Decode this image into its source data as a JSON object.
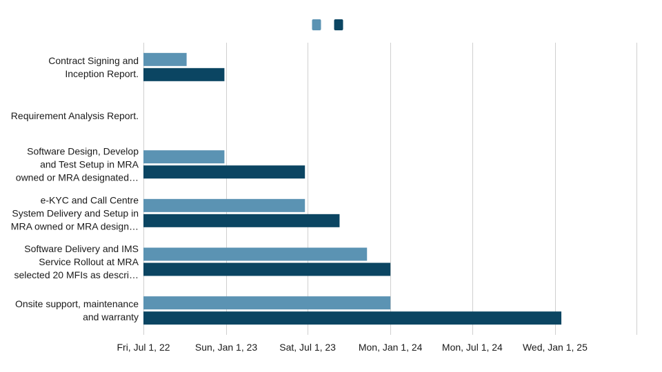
{
  "chart_data": {
    "type": "bar",
    "orientation": "horizontal",
    "categories": [
      [
        "Contract Signing and",
        "Inception Report."
      ],
      [
        "Requirement Analysis Report."
      ],
      [
        "Software Design, Develop",
        "and Test Setup in MRA",
        "owned or MRA designated…"
      ],
      [
        "e-KYC and Call Centre",
        "System Delivery and Setup in",
        "MRA owned or MRA design…"
      ],
      [
        "Software Delivery and IMS",
        "Service Rollout at MRA",
        "selected 20 MFIs as descri…"
      ],
      [
        "Onsite support, maintenance",
        "and warranty"
      ]
    ],
    "series": [
      {
        "color": "#5b93b3",
        "values": [
          "2022-10-05",
          null,
          "2022-12-28",
          "2023-06-25",
          "2023-11-10",
          "2024-01-01"
        ]
      },
      {
        "color": "#0b4562",
        "values": [
          "2022-12-28",
          null,
          "2023-06-25",
          "2023-09-10",
          "2024-01-01",
          "2025-01-15"
        ]
      }
    ],
    "x_ticks": [
      "Fri, Jul 1, 22",
      "Sun, Jan 1, 23",
      "Sat, Jul 1, 23",
      "Mon, Jan 1, 24",
      "Mon, Jul 1, 24",
      "Wed, Jan 1, 25"
    ],
    "xlim": [
      "2022-07-01",
      "2025-07-01"
    ],
    "grid": true,
    "legend": "top-center"
  }
}
